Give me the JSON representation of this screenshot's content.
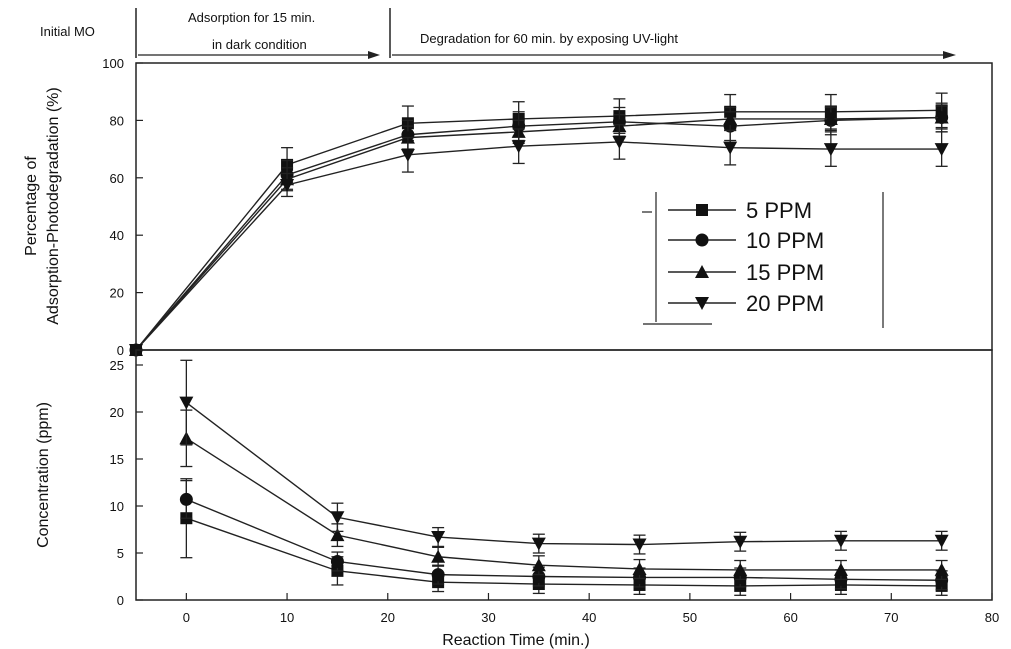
{
  "header": {
    "initial": "Initial MO",
    "adsorption_line1": "Adsorption for 15 min.",
    "adsorption_line2": "in dark condition",
    "degradation": "Degradation for 60 min. by exposing UV-light"
  },
  "chart_data": [
    {
      "type": "line",
      "ylabel_line1": "Percentage of",
      "ylabel_line2": "Adsorption-Photodegradation (%)",
      "xlim": [
        -5,
        80
      ],
      "ylim": [
        0,
        100
      ],
      "yticks": [
        0,
        20,
        40,
        60,
        80,
        100
      ],
      "legend": "center-right",
      "series": [
        {
          "name": "5 PPM",
          "marker": "square",
          "x": [
            -5,
            10,
            22,
            33,
            43,
            54,
            64,
            75
          ],
          "y": [
            0,
            64.5,
            79,
            80.5,
            81.5,
            83,
            83,
            83.5
          ],
          "err": [
            0,
            6,
            6,
            6,
            6,
            6,
            6,
            6
          ]
        },
        {
          "name": "10 PPM",
          "marker": "circle",
          "x": [
            -5,
            10,
            22,
            33,
            43,
            54,
            64,
            75
          ],
          "y": [
            0,
            61,
            75,
            78,
            79.5,
            78,
            80,
            81
          ],
          "err": [
            0,
            5,
            5,
            5,
            5,
            5,
            5,
            5
          ]
        },
        {
          "name": "15 PPM",
          "marker": "triangle-up",
          "x": [
            -5,
            10,
            22,
            33,
            43,
            54,
            64,
            75
          ],
          "y": [
            0,
            59.5,
            74,
            76,
            78,
            80.5,
            80.5,
            81
          ],
          "err": [
            0,
            4,
            4,
            4,
            4,
            4,
            4,
            4
          ]
        },
        {
          "name": "20 PPM",
          "marker": "triangle-down",
          "x": [
            -5,
            10,
            22,
            33,
            43,
            54,
            64,
            75
          ],
          "y": [
            0,
            57.5,
            68,
            71,
            72.5,
            70.5,
            70,
            70
          ],
          "err": [
            0,
            4,
            6,
            6,
            6,
            6,
            6,
            6
          ]
        }
      ]
    },
    {
      "type": "line",
      "xlabel": "Reaction Time (min.)",
      "ylabel": "Concentration (ppm)",
      "xlim": [
        -5,
        80
      ],
      "ylim": [
        0,
        25
      ],
      "xticks": [
        0,
        10,
        20,
        30,
        40,
        50,
        60,
        70,
        80
      ],
      "yticks": [
        0,
        5,
        10,
        15,
        20,
        25
      ],
      "series": [
        {
          "name": "5 PPM",
          "marker": "square",
          "x": [
            0,
            15,
            25,
            35,
            45,
            55,
            65,
            75
          ],
          "y": [
            8.7,
            3.1,
            1.9,
            1.7,
            1.6,
            1.5,
            1.6,
            1.5
          ],
          "err": [
            4.2,
            1.5,
            1,
            1,
            1,
            1,
            1,
            1
          ]
        },
        {
          "name": "10 PPM",
          "marker": "circle",
          "x": [
            0,
            15,
            25,
            35,
            45,
            55,
            65,
            75
          ],
          "y": [
            10.7,
            4.1,
            2.7,
            2.5,
            2.4,
            2.4,
            2.2,
            2.1
          ],
          "err": [
            2,
            1,
            1,
            1,
            1,
            1,
            1,
            1
          ]
        },
        {
          "name": "15 PPM",
          "marker": "triangle-up",
          "x": [
            0,
            15,
            25,
            35,
            45,
            55,
            65,
            75
          ],
          "y": [
            17.2,
            6.9,
            4.6,
            3.7,
            3.3,
            3.2,
            3.2,
            3.2
          ],
          "err": [
            3,
            1.2,
            1,
            1,
            1,
            1,
            1,
            1
          ]
        },
        {
          "name": "20 PPM",
          "marker": "triangle-down",
          "x": [
            0,
            15,
            25,
            35,
            45,
            55,
            65,
            75
          ],
          "y": [
            21,
            8.8,
            6.7,
            6,
            5.9,
            6.2,
            6.3,
            6.3
          ],
          "err": [
            4.5,
            1.5,
            1,
            1,
            1,
            1,
            1,
            1
          ]
        }
      ]
    }
  ]
}
